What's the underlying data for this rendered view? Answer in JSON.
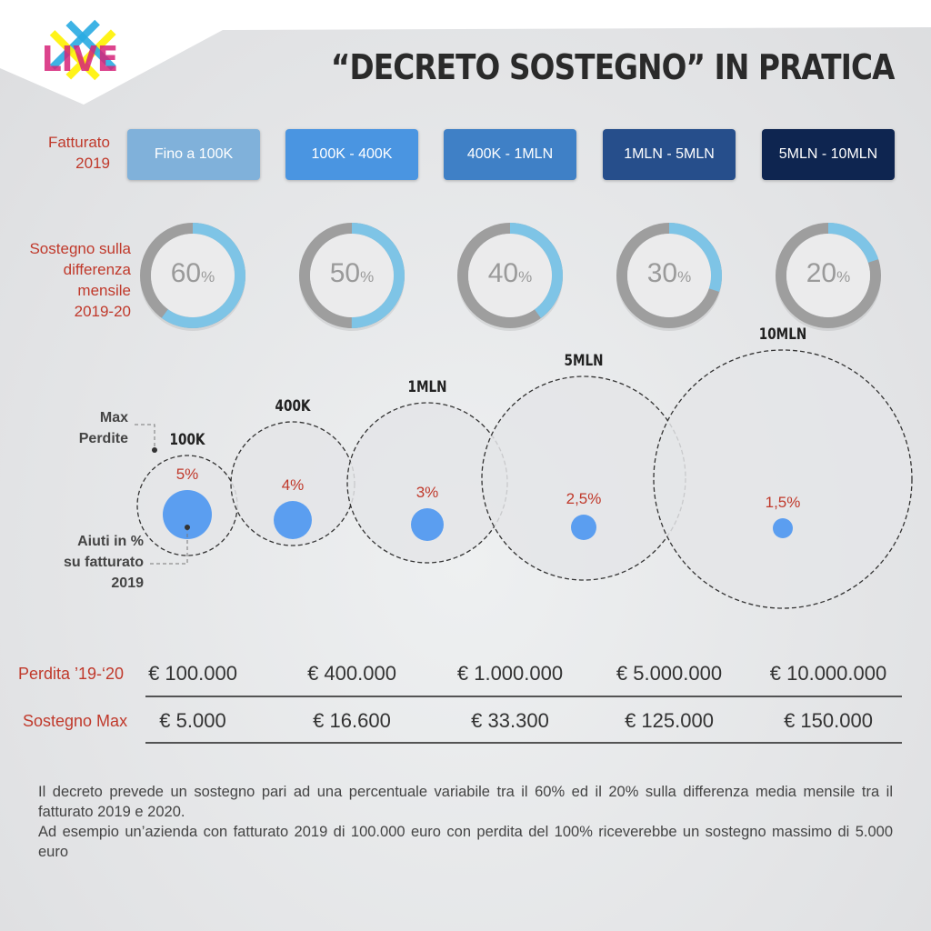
{
  "title": "“DECRETO SOSTEGNO” IN PRATICA",
  "logo_text": "LIVE",
  "labels": {
    "fatturato": "Fatturato",
    "fatturato_year": "2019",
    "sostegno": [
      "Sostegno sulla",
      "differenza",
      "mensile",
      "2019-20"
    ],
    "max_perdite": [
      "Max",
      "Perdite"
    ],
    "aiuti": [
      "Aiuti in %",
      "su fatturato",
      "2019"
    ],
    "perdita_row": "Perdita ’19-‘20",
    "sostegno_row": "Sostegno Max"
  },
  "colors": {
    "accent_red": "#c0392b",
    "ring_blue": "#7ec4e6",
    "ring_gray": "#9e9e9e",
    "dot_blue": "#5b9ef0"
  },
  "tiers": [
    {
      "range": "Fino a 100K",
      "color": "#80b1da",
      "support_pct": 60,
      "bubble": "100K",
      "aid": "5%",
      "perdita": "€ 100.000",
      "sostegno_max": "€ 5.000"
    },
    {
      "range": "100K - 400K",
      "color": "#4a95e1",
      "support_pct": 50,
      "bubble": "400K",
      "aid": "4%",
      "perdita": "€ 400.000",
      "sostegno_max": "€ 16.600"
    },
    {
      "range": "400K - 1MLN",
      "color": "#3f80c6",
      "support_pct": 40,
      "bubble": "1MLN",
      "aid": "3%",
      "perdita": "€ 1.000.000",
      "sostegno_max": "€ 33.300"
    },
    {
      "range": "1MLN - 5MLN",
      "color": "#264e8b",
      "support_pct": 30,
      "bubble": "5MLN",
      "aid": "2,5%",
      "perdita": "€ 5.000.000",
      "sostegno_max": "€ 125.000"
    },
    {
      "range": "5MLN - 10MLN",
      "color": "#0e2550",
      "support_pct": 20,
      "bubble": "10MLN",
      "aid": "1,5%",
      "perdita": "€ 10.000.000",
      "sostegno_max": "€ 150.000"
    }
  ],
  "description": [
    "Il decreto prevede un sostegno pari ad una percentuale variabile tra il 60% ed il 20% sulla differenza media mensile tra il fatturato 2019 e 2020.",
    "Ad esempio un’azienda con fatturato 2019 di 100.000 euro con perdita del 100% riceverebbe un sostegno massimo di 5.000 euro"
  ]
}
